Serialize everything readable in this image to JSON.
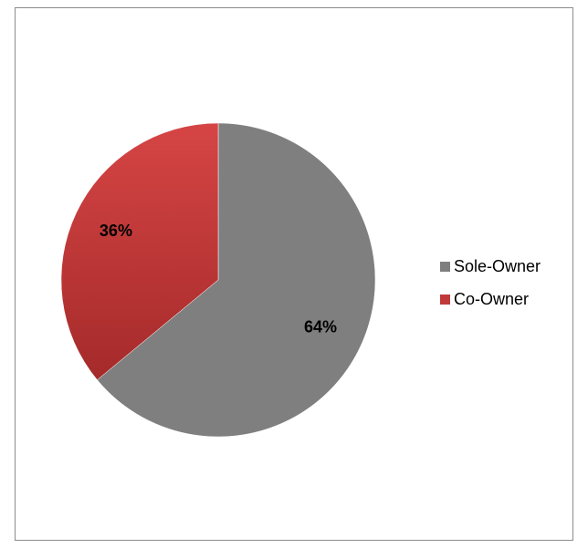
{
  "chart_data": {
    "type": "pie",
    "title": "",
    "categories": [
      "Sole-Owner",
      "Co-Owner"
    ],
    "values": [
      64,
      36
    ],
    "value_labels": [
      "64%",
      "36%"
    ],
    "colors": [
      "#7f7f7f",
      "#c0393b"
    ],
    "start_angle": "top",
    "direction": "clockwise",
    "legend": {
      "position": "right",
      "entries": [
        "Sole-Owner",
        "Co-Owner"
      ]
    }
  }
}
